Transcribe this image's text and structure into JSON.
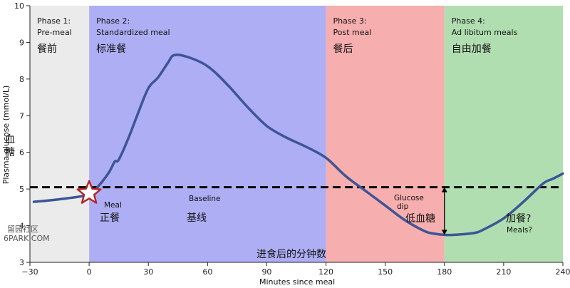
{
  "chart_data": {
    "type": "line",
    "xlabel": "Minutes since meal",
    "xlabel_cn": "进食后的分钟数",
    "ylabel": "Plasma glucose (mmol/L)",
    "ylabel_cn": "血糖",
    "xlim": [
      -30,
      240
    ],
    "ylim": [
      3,
      10
    ],
    "xticks": [
      -30,
      0,
      30,
      60,
      90,
      120,
      150,
      180,
      210,
      240
    ],
    "yticks": [
      3,
      4,
      5,
      6,
      7,
      8,
      9,
      10
    ],
    "x_tick_labels": [
      "−30",
      "0",
      "30",
      "60",
      "90",
      "120",
      "150",
      "180",
      "210",
      "240"
    ],
    "baseline": 5.05,
    "baseline_label": "Baseline",
    "baseline_label_cn": "基线",
    "phases": [
      {
        "x_start": -30,
        "x_end": 0,
        "title": "Phase 1:",
        "subtitle": "Pre-meal",
        "cn": "餐前",
        "color": "#ebebeb"
      },
      {
        "x_start": 0,
        "x_end": 120,
        "title": "Phase 2:",
        "subtitle": "Standardized meal",
        "cn": "标准餐",
        "color": "#aeaef5"
      },
      {
        "x_start": 120,
        "x_end": 180,
        "title": "Phase 3:",
        "subtitle": "Post meal",
        "cn": "餐后",
        "color": "#f7aeae"
      },
      {
        "x_start": 180,
        "x_end": 240,
        "title": "Phase 4:",
        "subtitle": "Ad libitum meals",
        "cn": "自由加餐",
        "color": "#b1deb1"
      }
    ],
    "series": [
      {
        "color": "#3d5596",
        "points": [
          [
            -28,
            4.65
          ],
          [
            -15,
            4.72
          ],
          [
            0,
            4.85
          ],
          [
            5,
            5.1
          ],
          [
            10,
            5.45
          ],
          [
            13,
            5.75
          ],
          [
            15,
            5.8
          ],
          [
            20,
            6.4
          ],
          [
            25,
            7.1
          ],
          [
            30,
            7.75
          ],
          [
            35,
            8.05
          ],
          [
            40,
            8.45
          ],
          [
            43,
            8.65
          ],
          [
            50,
            8.6
          ],
          [
            60,
            8.35
          ],
          [
            70,
            7.85
          ],
          [
            80,
            7.25
          ],
          [
            90,
            6.72
          ],
          [
            100,
            6.4
          ],
          [
            110,
            6.15
          ],
          [
            120,
            5.85
          ],
          [
            130,
            5.35
          ],
          [
            140,
            4.95
          ],
          [
            150,
            4.55
          ],
          [
            160,
            4.15
          ],
          [
            170,
            3.85
          ],
          [
            175,
            3.78
          ],
          [
            180,
            3.75
          ],
          [
            185,
            3.75
          ],
          [
            195,
            3.8
          ],
          [
            200,
            3.9
          ],
          [
            210,
            4.2
          ],
          [
            220,
            4.65
          ],
          [
            230,
            5.15
          ],
          [
            235,
            5.28
          ],
          [
            240,
            5.42
          ]
        ]
      }
    ],
    "annotations": {
      "meal": {
        "x": 0,
        "y": 4.85,
        "label": "Meal",
        "label_cn": "正餐"
      },
      "dip": {
        "x": 180,
        "y_top": 5.05,
        "y_bottom": 3.75,
        "label_line1": "Glucose",
        "label_line2": "dip",
        "label_cn": "低血糖"
      },
      "meals": {
        "label": "Meals?",
        "label_cn": "加餐?"
      }
    },
    "grid": false
  },
  "watermark": {
    "line1": "留园社区",
    "line2": "6PARK.COM"
  }
}
